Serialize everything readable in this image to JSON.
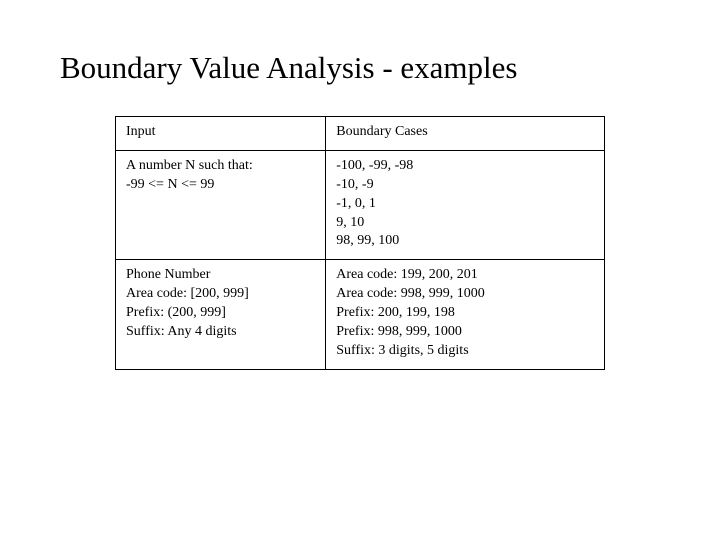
{
  "title": "Boundary Value Analysis - examples",
  "table": {
    "border_color": "#000000",
    "background": "#ffffff",
    "font_size_pt": 11,
    "header": {
      "left": "Input",
      "right": "Boundary Cases"
    },
    "row1": {
      "left_line1": "A number N such that:",
      "left_line2": "-99 <= N <= 99",
      "right_line1": "-100, -99, -98",
      "right_line2": "-10, -9",
      "right_line3": "-1, 0, 1",
      "right_line4": "9, 10",
      "right_line5": "98, 99, 100"
    },
    "row2": {
      "left_line1": "Phone Number",
      "left_line2": "Area code: [200, 999]",
      "left_line3": "Prefix: (200, 999]",
      "left_line4": "Suffix: Any 4 digits",
      "right_line1": "Area code: 199, 200, 201",
      "right_line2": "Area code: 998, 999, 1000",
      "right_line3": "Prefix: 200, 199, 198",
      "right_line4": "Prefix: 998, 999, 1000",
      "right_line5": "Suffix: 3 digits, 5 digits"
    }
  }
}
